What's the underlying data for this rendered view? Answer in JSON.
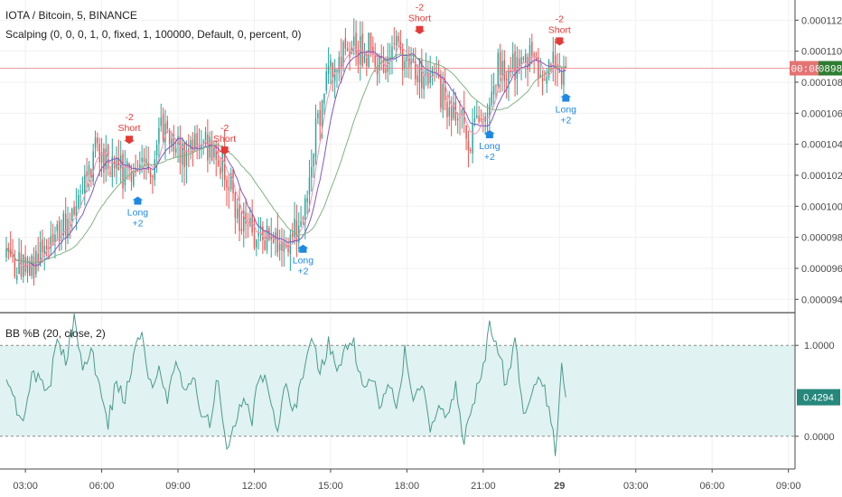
{
  "chart_data": {
    "type": "candlestick",
    "panes": [
      {
        "id": "price",
        "legend": [
          "IOTA / Bitcoin, 5, BINANCE",
          "Scalping (0, 0, 0, 1, 0, fixed, 1, 100000, Default, 0, percent, 0)"
        ],
        "y_ticks": [
          "0.00011200",
          "0.00011000",
          "0.00010800",
          "0.00010600",
          "0.00010400",
          "0.00010200",
          "0.00010000",
          "0.00009800",
          "0.00009600",
          "0.00009400"
        ],
        "y_tick_values": [
          0.000112,
          0.00011,
          0.000108,
          0.000106,
          0.000104,
          0.000102,
          0.0001,
          9.8e-05,
          9.6e-05,
          9.4e-05
        ],
        "ylim": [
          9.32e-05,
          0.0001133
        ],
        "current_price": 0.0001089,
        "current_price_badge": {
          "countdown": "00:08",
          "value": "0898"
        },
        "anchors": [
          [
            0,
            9.73e-05
          ],
          [
            6,
            9.62e-05
          ],
          [
            10,
            9.57e-05
          ],
          [
            14,
            9.65e-05
          ],
          [
            20,
            9.69e-05
          ],
          [
            26,
            9.82e-05
          ],
          [
            32,
            9.98e-05
          ],
          [
            38,
            0.0001023
          ],
          [
            42,
            0.0001035
          ],
          [
            46,
            0.0001031
          ],
          [
            50,
            0.0001028
          ],
          [
            56,
            0.000102
          ],
          [
            60,
            0.0001026
          ],
          [
            64,
            0.0001022
          ],
          [
            68,
            0.0001024
          ],
          [
            72,
            0.0001047
          ],
          [
            78,
            0.0001043
          ],
          [
            84,
            0.0001036
          ],
          [
            89,
            0.0001042
          ],
          [
            94,
            0.000104
          ],
          [
            98,
            0.0001037
          ],
          [
            102,
            0.0001028
          ],
          [
            106,
            0.0001012
          ],
          [
            110,
            9.92e-05
          ],
          [
            114,
            9.85e-05
          ],
          [
            118,
            9.8e-05
          ],
          [
            122,
            9.78e-05
          ],
          [
            126,
            9.85e-05
          ],
          [
            130,
            9.72e-05
          ],
          [
            134,
            9.82e-05
          ],
          [
            138,
            9.88e-05
          ],
          [
            141,
            9.95e-05
          ],
          [
            144,
            0.0001035
          ],
          [
            148,
            0.000106
          ],
          [
            152,
            0.000109
          ],
          [
            156,
            0.0001095
          ],
          [
            160,
            0.0001098
          ],
          [
            164,
            0.0001105
          ],
          [
            168,
            0.0001098
          ],
          [
            172,
            0.0001102
          ],
          [
            176,
            0.0001094
          ],
          [
            180,
            0.0001096
          ],
          [
            184,
            0.0001103
          ],
          [
            188,
            0.0001096
          ],
          [
            192,
            0.000109
          ],
          [
            196,
            0.0001085
          ],
          [
            200,
            0.0001082
          ],
          [
            204,
            0.0001075
          ],
          [
            208,
            0.0001068
          ],
          [
            212,
            0.0001062
          ],
          [
            216,
            0.0001052
          ],
          [
            219,
            0.0001044
          ],
          [
            222,
            0.0001057
          ],
          [
            226,
            0.0001065
          ],
          [
            229,
            0.0001075
          ],
          [
            232,
            0.0001088
          ],
          [
            236,
            0.0001092
          ],
          [
            240,
            0.000109
          ],
          [
            244,
            0.0001095
          ],
          [
            248,
            0.0001093
          ],
          [
            252,
            0.0001088
          ],
          [
            256,
            0.0001091
          ],
          [
            260,
            0.0001087
          ],
          [
            263,
            0.0001083
          ],
          [
            264,
            0.0001089
          ]
        ],
        "signals": [
          {
            "bar": 58,
            "side": "short",
            "label": "Short",
            "qty": "-2"
          },
          {
            "bar": 62,
            "side": "long",
            "label": "Long",
            "qty": "+2"
          },
          {
            "bar": 103,
            "side": "short",
            "label": "Short",
            "qty": "-2"
          },
          {
            "bar": 140,
            "side": "long",
            "label": "Long",
            "qty": "+2"
          },
          {
            "bar": 195,
            "side": "short",
            "label": "Short",
            "qty": "-2"
          },
          {
            "bar": 228,
            "side": "long",
            "label": "Long",
            "qty": "+2"
          },
          {
            "bar": 261,
            "side": "short",
            "label": "Short",
            "qty": "-2"
          },
          {
            "bar": 264,
            "side": "long",
            "label": "Long",
            "qty": "+2"
          }
        ]
      },
      {
        "id": "bbpctb",
        "legend": [
          "BB %B (20, close, 2)"
        ],
        "y_ticks": [
          "1.0000",
          "0.0000"
        ],
        "y_tick_values": [
          1,
          0
        ],
        "ylim": [
          -0.35,
          1.35
        ],
        "current_value": 0.4294,
        "current_value_label": "0.4294",
        "band": [
          0,
          1
        ],
        "anchors": [
          [
            0,
            0.55
          ],
          [
            4,
            0.35
          ],
          [
            8,
            0.15
          ],
          [
            12,
            0.72
          ],
          [
            16,
            0.6
          ],
          [
            20,
            0.48
          ],
          [
            24,
            1.1
          ],
          [
            28,
            0.82
          ],
          [
            32,
            1.28
          ],
          [
            36,
            0.78
          ],
          [
            40,
            0.95
          ],
          [
            44,
            0.55
          ],
          [
            48,
            0.15
          ],
          [
            52,
            0.6
          ],
          [
            56,
            0.4
          ],
          [
            60,
            0.85
          ],
          [
            64,
            1.2
          ],
          [
            68,
            0.55
          ],
          [
            72,
            0.7
          ],
          [
            76,
            0.4
          ],
          [
            80,
            0.85
          ],
          [
            84,
            0.5
          ],
          [
            88,
            0.65
          ],
          [
            92,
            0.22
          ],
          [
            96,
            0.15
          ],
          [
            100,
            0.65
          ],
          [
            104,
            -0.18
          ],
          [
            108,
            0.15
          ],
          [
            112,
            0.4
          ],
          [
            116,
            0.2
          ],
          [
            120,
            0.75
          ],
          [
            124,
            0.45
          ],
          [
            128,
            0.1
          ],
          [
            132,
            0.55
          ],
          [
            136,
            0.3
          ],
          [
            140,
            0.62
          ],
          [
            144,
            1.15
          ],
          [
            148,
            0.72
          ],
          [
            152,
            1.02
          ],
          [
            156,
            0.8
          ],
          [
            160,
            0.92
          ],
          [
            164,
            1.0
          ],
          [
            168,
            0.55
          ],
          [
            172,
            0.7
          ],
          [
            176,
            0.35
          ],
          [
            180,
            0.62
          ],
          [
            184,
            0.28
          ],
          [
            188,
            0.92
          ],
          [
            192,
            0.45
          ],
          [
            196,
            0.55
          ],
          [
            200,
            0.1
          ],
          [
            204,
            0.4
          ],
          [
            208,
            0.22
          ],
          [
            212,
            0.52
          ],
          [
            216,
            -0.05
          ],
          [
            220,
            0.4
          ],
          [
            224,
            0.62
          ],
          [
            228,
            1.2
          ],
          [
            232,
            0.95
          ],
          [
            236,
            0.55
          ],
          [
            240,
            1.02
          ],
          [
            244,
            0.3
          ],
          [
            248,
            0.45
          ],
          [
            252,
            0.62
          ],
          [
            256,
            0.35
          ],
          [
            259,
            -0.18
          ],
          [
            262,
            0.72
          ],
          [
            264,
            0.43
          ]
        ]
      }
    ],
    "x_ticks": [
      "03:00",
      "06:00",
      "09:00",
      "12:00",
      "15:00",
      "18:00",
      "21:00",
      "29",
      "03:00",
      "06:00",
      "09:00"
    ],
    "x_tick_bars": [
      9,
      45,
      81,
      117,
      153,
      189,
      225,
      261,
      297,
      333,
      369
    ],
    "bars": 265,
    "colors": {
      "up": "#26a69a",
      "down": "#ef5350",
      "fast_ma": "#f48fb1",
      "mid_ma": "#7e57c2",
      "slow_ma": "#81b386",
      "bb_line": "#4a9b8e",
      "bb_fill": "#e0f2f1",
      "short_signal": "#e53935",
      "long_signal": "#1e88e5",
      "price_badge": "#ef5350",
      "countdown_badge": "#e57373",
      "bb_badge": "#26877b",
      "axis_text": "#4a4a4a",
      "grid": "#f1f1f1"
    },
    "grid": true,
    "legend_position": "top-left"
  }
}
